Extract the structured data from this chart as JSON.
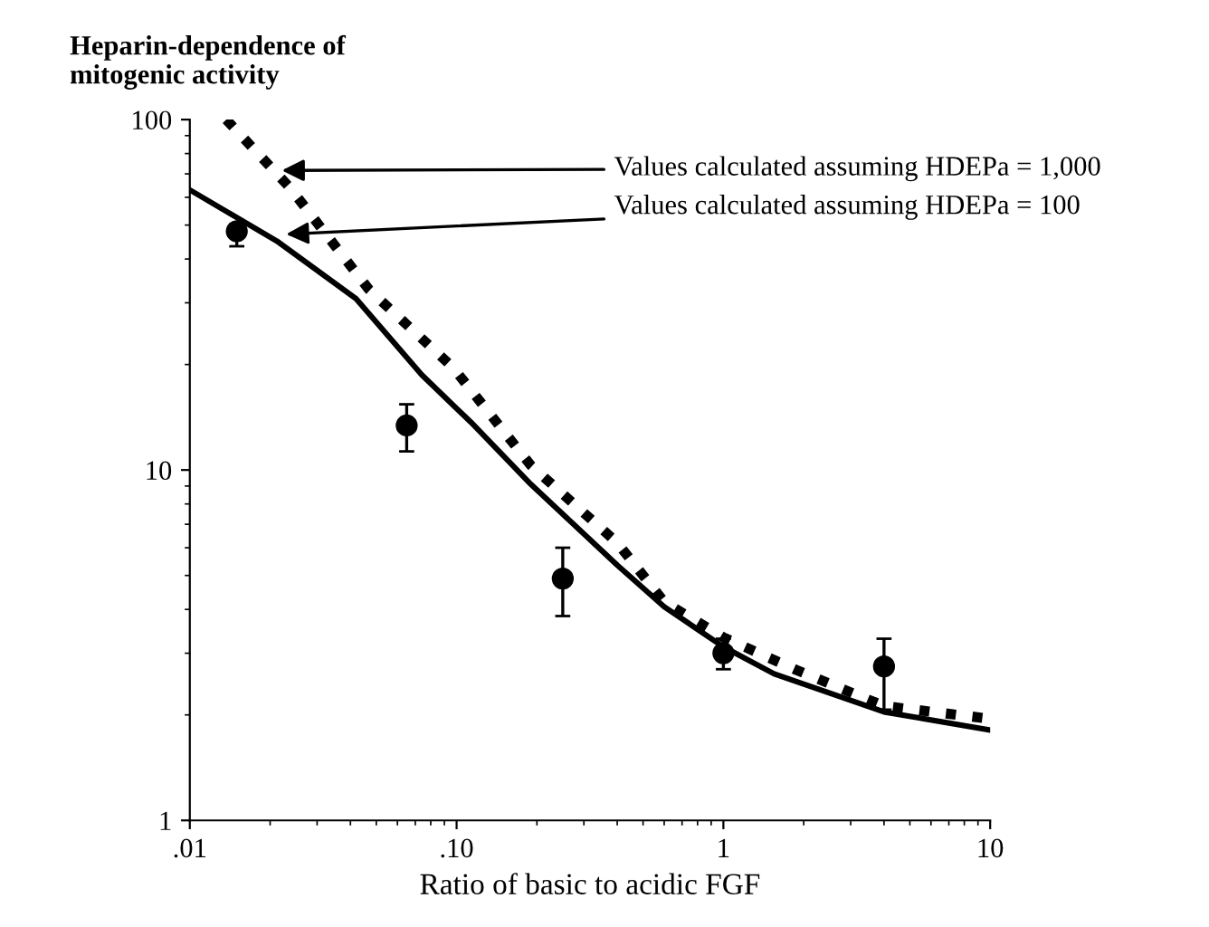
{
  "chart_data": {
    "type": "line",
    "title": "Heparin-dependence of\nmitogenic activity",
    "xlabel": "Ratio of basic to acidic FGF",
    "log": "xy",
    "xlim": [
      0.01,
      10
    ],
    "ylim": [
      1,
      100
    ],
    "xticks": [
      {
        "value": 0.01,
        "label": ".01"
      },
      {
        "value": 0.1,
        "label": ".10"
      },
      1,
      10
    ],
    "yticks": [
      1,
      10,
      100
    ],
    "grid": false,
    "legend": false,
    "series": [
      {
        "color": "#000000",
        "line_style": "dotted",
        "marker": "none",
        "x": [
          0.0137,
          0.0237,
          0.047,
          0.097,
          0.19,
          0.4,
          0.6,
          1.0,
          1.87,
          4.0,
          10
        ],
        "values": [
          100,
          64,
          32.7,
          19.6,
          10.3,
          6.2,
          4.2,
          3.33,
          2.69,
          2.12,
          1.95
        ]
      },
      {
        "color": "#000000",
        "line_style": "solid",
        "marker": "none",
        "x": [
          0.01,
          0.0212,
          0.042,
          0.074,
          0.113,
          0.19,
          0.4,
          0.6,
          1.0,
          1.55,
          4.0,
          10
        ],
        "values": [
          63,
          45,
          30.8,
          18.7,
          13.7,
          9.1,
          5.35,
          4.07,
          3.13,
          2.62,
          2.04,
          1.81
        ]
      },
      {
        "type": "scatter",
        "color": "#000000",
        "marker": "circle",
        "x": [
          0.015,
          0.065,
          0.25,
          1.0,
          4.0
        ],
        "values": [
          48,
          13.4,
          4.9,
          3.0,
          2.75
        ],
        "errors": [
          [
            43.5,
            50.3
          ],
          [
            11.3,
            15.4
          ],
          [
            3.83,
            6.0
          ],
          [
            2.7,
            3.3
          ],
          [
            2.07,
            3.3
          ]
        ]
      }
    ],
    "annotations": [
      {
        "text": "Values calculated assuming HDEPa = 1,000",
        "x": 0.0212,
        "y": 71.6
      },
      {
        "text": "Values calculated assuming HDEPa = 100",
        "x": 0.022,
        "y": 47
      }
    ]
  }
}
